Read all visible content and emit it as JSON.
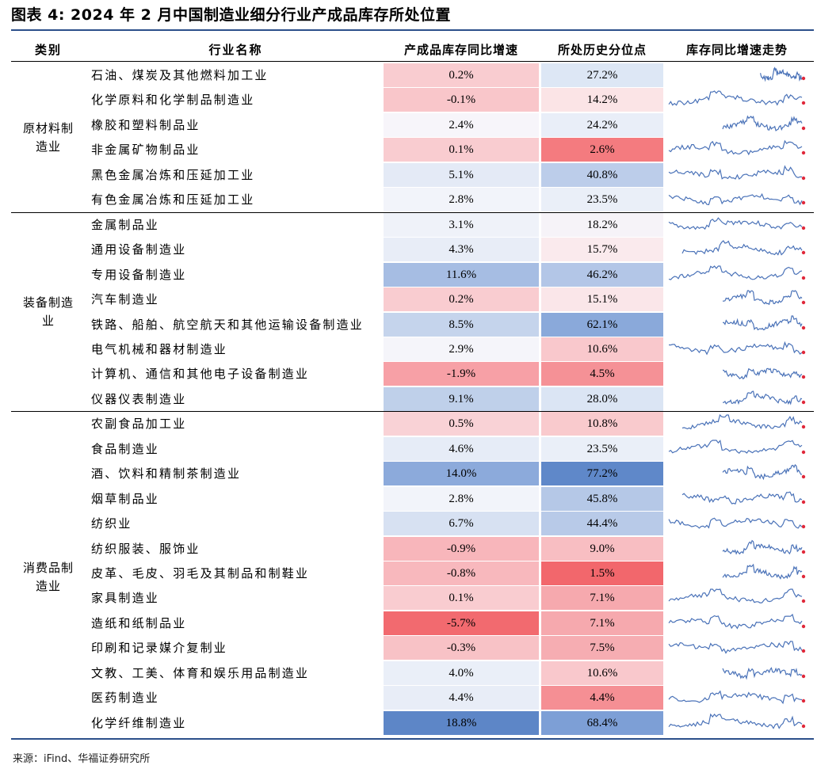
{
  "title": "图表 4:  2024 年 2 月中国制造业细分行业产成品库存所处位置",
  "headers": {
    "category": "类别",
    "industry": "行业名称",
    "yoy": "产成品库存同比增速",
    "percentile": "所处历史分位点",
    "trend": "库存同比增速走势"
  },
  "groups": [
    {
      "label_line1": "原材料制",
      "label_line2": "造业"
    },
    {
      "label_line1": "装备制造",
      "label_line2": "业"
    },
    {
      "label_line1": "消费品制",
      "label_line2": "造业"
    }
  ],
  "rows": [
    {
      "name": "石油、煤炭及其他燃料加工业",
      "yoy": "0.2%",
      "pct": "27.2%",
      "yoy_color": "#f9ccd0",
      "pct_color": "#dde7f5",
      "spark_start": 0.68
    },
    {
      "name": "化学原料和化学制品制造业",
      "yoy": "-0.1%",
      "pct": "14.2%",
      "yoy_color": "#f9c6ca",
      "pct_color": "#fbe4e6",
      "spark_start": 0.0
    },
    {
      "name": "橡胶和塑料制品业",
      "yoy": "2.4%",
      "pct": "24.2%",
      "yoy_color": "#f7f5fa",
      "pct_color": "#e9eef8",
      "spark_start": 0.4
    },
    {
      "name": "非金属矿物制品业",
      "yoy": "0.1%",
      "pct": "2.6%",
      "yoy_color": "#f9ccd0",
      "pct_color": "#f47b7f",
      "spark_start": 0.0
    },
    {
      "name": "黑色金属冶炼和压延加工业",
      "yoy": "5.1%",
      "pct": "40.8%",
      "yoy_color": "#e4eaf6",
      "pct_color": "#bccdea",
      "spark_start": 0.0
    },
    {
      "name": "有色金属冶炼和压延加工业",
      "yoy": "2.8%",
      "pct": "23.5%",
      "yoy_color": "#f2f4fa",
      "pct_color": "#eaeff8",
      "spark_start": 0.0
    },
    {
      "name": "金属制品业",
      "yoy": "3.1%",
      "pct": "18.2%",
      "yoy_color": "#eff2f9",
      "pct_color": "#f6f3f8",
      "spark_start": 0.0
    },
    {
      "name": "通用设备制造业",
      "yoy": "4.3%",
      "pct": "15.7%",
      "yoy_color": "#e8edf7",
      "pct_color": "#faeaed",
      "spark_start": 0.1
    },
    {
      "name": "专用设备制造业",
      "yoy": "11.6%",
      "pct": "46.2%",
      "yoy_color": "#a6bde3",
      "pct_color": "#b3c6e7",
      "spark_start": 0.0
    },
    {
      "name": "汽车制造业",
      "yoy": "0.2%",
      "pct": "15.1%",
      "yoy_color": "#f9ccd0",
      "pct_color": "#fae6e9",
      "spark_start": 0.4
    },
    {
      "name": "铁路、船舶、航空航天和其他运输设备制造业",
      "yoy": "8.5%",
      "pct": "62.1%",
      "yoy_color": "#c5d4ec",
      "pct_color": "#8aa9da",
      "spark_start": 0.4
    },
    {
      "name": "电气机械和器材制造业",
      "yoy": "2.9%",
      "pct": "10.6%",
      "yoy_color": "#f5f5fa",
      "pct_color": "#f9c8cc",
      "spark_start": 0.0
    },
    {
      "name": "计算机、通信和其他电子设备制造业",
      "yoy": "-1.9%",
      "pct": "4.5%",
      "yoy_color": "#f7a0a6",
      "pct_color": "#f59196",
      "spark_start": 0.4
    },
    {
      "name": "仪器仪表制造业",
      "yoy": "9.1%",
      "pct": "28.0%",
      "yoy_color": "#bfd0ea",
      "pct_color": "#dbe5f4",
      "spark_start": 0.4
    },
    {
      "name": "农副食品加工业",
      "yoy": "0.5%",
      "pct": "10.8%",
      "yoy_color": "#f9d2d6",
      "pct_color": "#f9cacd",
      "spark_start": 0.1
    },
    {
      "name": "食品制造业",
      "yoy": "4.6%",
      "pct": "23.5%",
      "yoy_color": "#e6ecf7",
      "pct_color": "#eaeff8",
      "spark_start": 0.0
    },
    {
      "name": "酒、饮料和精制茶制造业",
      "yoy": "14.0%",
      "pct": "77.2%",
      "yoy_color": "#8caadb",
      "pct_color": "#5f88c9",
      "spark_start": 0.4
    },
    {
      "name": "烟草制品业",
      "yoy": "2.8%",
      "pct": "45.8%",
      "yoy_color": "#f2f4fa",
      "pct_color": "#b5c8e7",
      "spark_start": 0.1
    },
    {
      "name": "纺织业",
      "yoy": "6.7%",
      "pct": "44.4%",
      "yoy_color": "#d7e1f2",
      "pct_color": "#b8cae8",
      "spark_start": 0.0
    },
    {
      "name": "纺织服装、服饰业",
      "yoy": "-0.9%",
      "pct": "9.0%",
      "yoy_color": "#f8b6bb",
      "pct_color": "#f8bec2",
      "spark_start": 0.4
    },
    {
      "name": "皮革、毛皮、羽毛及其制品和制鞋业",
      "yoy": "-0.8%",
      "pct": "1.5%",
      "yoy_color": "#f8b8bd",
      "pct_color": "#f2676c",
      "spark_start": 0.4
    },
    {
      "name": "家具制造业",
      "yoy": "0.1%",
      "pct": "7.1%",
      "yoy_color": "#f9ccd0",
      "pct_color": "#f6a9ae",
      "spark_start": 0.0
    },
    {
      "name": "造纸和纸制品业",
      "yoy": "-5.7%",
      "pct": "7.1%",
      "yoy_color": "#f26a6f",
      "pct_color": "#f6a9ae",
      "spark_start": 0.0
    },
    {
      "name": "印刷和记录媒介复制业",
      "yoy": "-0.3%",
      "pct": "7.5%",
      "yoy_color": "#f8c2c6",
      "pct_color": "#f6adb2",
      "spark_start": 0.0
    },
    {
      "name": "文教、工美、体育和娱乐用品制造业",
      "yoy": "4.0%",
      "pct": "10.6%",
      "yoy_color": "#eaeff8",
      "pct_color": "#f9c8cc",
      "spark_start": 0.4
    },
    {
      "name": "医药制造业",
      "yoy": "4.4%",
      "pct": "4.4%",
      "yoy_color": "#e8edf7",
      "pct_color": "#f58f94",
      "spark_start": 0.0
    },
    {
      "name": "化学纤维制造业",
      "yoy": "18.8%",
      "pct": "68.4%",
      "yoy_color": "#5d86c7",
      "pct_color": "#7d9fd6",
      "spark_start": 0.0
    }
  ],
  "colors": {
    "rule": "#2b4f8a",
    "spark_line": "#4a72b8",
    "spark_end": "#e0283a"
  },
  "source": "来源：iFind、华福证券研究所"
}
